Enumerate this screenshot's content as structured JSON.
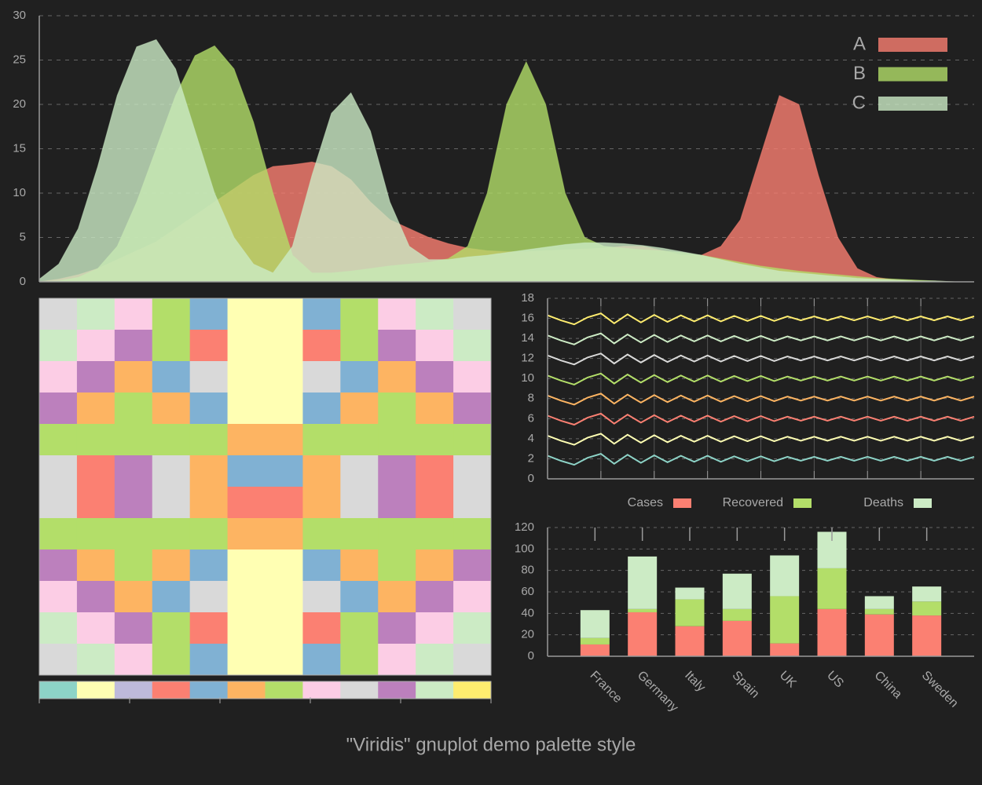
{
  "title": "\"Viridis\" gnuplot demo palette style",
  "chart_data": [
    {
      "type": "area",
      "x": [
        0,
        1,
        2,
        3,
        4,
        5,
        6,
        7,
        8,
        9,
        10,
        11,
        12,
        13,
        14,
        15,
        16,
        17,
        18,
        19,
        20,
        21,
        22,
        23,
        24,
        25,
        26,
        27,
        28,
        29,
        30,
        31,
        32,
        33,
        34,
        35,
        36,
        37,
        38,
        39,
        40,
        41,
        42,
        43,
        44,
        45,
        46,
        47,
        48
      ],
      "xlim": [
        0,
        48
      ],
      "ylim": [
        0,
        30
      ],
      "yticks": [
        0,
        5,
        10,
        15,
        20,
        25,
        30
      ],
      "grid": true,
      "legend": "top-right",
      "series": [
        {
          "name": "A",
          "color": "#fb8072",
          "values": [
            0,
            0.3,
            0.8,
            1.5,
            2.5,
            3.5,
            4.5,
            6,
            7.5,
            9,
            10.5,
            12,
            13,
            13.2,
            13.5,
            13,
            11.5,
            9,
            7,
            6,
            5,
            4.3,
            3.8,
            3.5,
            3.4,
            3.4,
            3.5,
            3.6,
            3.7,
            3.8,
            4,
            4,
            3.5,
            3,
            3,
            4,
            7,
            14,
            21,
            20,
            12,
            5,
            1.5,
            0.5,
            0.2,
            0.1,
            0,
            0,
            0
          ]
        },
        {
          "name": "B",
          "color": "#b3de69",
          "values": [
            0,
            0.1,
            0.5,
            1.5,
            4,
            9,
            15,
            21,
            25.5,
            26.6,
            24,
            18,
            10,
            3,
            1,
            1,
            1.2,
            1.5,
            1.8,
            2,
            2.2,
            2.6,
            4,
            10,
            20,
            24.8,
            20,
            10,
            5,
            4,
            3.8,
            3.6,
            3.5,
            3.3,
            3,
            2.6,
            2.2,
            1.8,
            1.5,
            1.2,
            1,
            0.8,
            0.6,
            0.4,
            0.3,
            0.2,
            0.1,
            0,
            0
          ]
        },
        {
          "name": "C",
          "color": "#ccebc5",
          "values": [
            0.3,
            2,
            6,
            13,
            21,
            26.5,
            27.3,
            24,
            17,
            10,
            5,
            2,
            1,
            4,
            12,
            19,
            21.3,
            17,
            9,
            4,
            2.5,
            2.5,
            2.8,
            3,
            3.3,
            3.6,
            3.9,
            4.2,
            4.4,
            4.4,
            4.3,
            4.1,
            3.8,
            3.4,
            3,
            2.5,
            2,
            1.6,
            1.2,
            1,
            0.8,
            0.6,
            0.4,
            0.3,
            0.2,
            0.1,
            0.1,
            0,
            0
          ]
        }
      ]
    },
    {
      "type": "heatmap",
      "palette": [
        "#8dd3c7",
        "#ffffb3",
        "#bebada",
        "#fb8072",
        "#80b1d3",
        "#fdb462",
        "#b3de69",
        "#fccde5",
        "#d9d9d9",
        "#bc80bd",
        "#ccebc5",
        "#ffed6f"
      ],
      "cblim": [
        0,
        12
      ],
      "cbticks": [
        0,
        2.4,
        4.8,
        7.2,
        9.6,
        12
      ],
      "z": [
        [
          8,
          10,
          7,
          6,
          4,
          1,
          1,
          4,
          6,
          7,
          10,
          8
        ],
        [
          10,
          7,
          9,
          6,
          3,
          1,
          1,
          3,
          6,
          9,
          7,
          10
        ],
        [
          7,
          9,
          5,
          4,
          8,
          1,
          1,
          8,
          4,
          5,
          9,
          7
        ],
        [
          9,
          5,
          6,
          5,
          4,
          1,
          1,
          4,
          5,
          6,
          5,
          9
        ],
        [
          6,
          6,
          6,
          6,
          6,
          5,
          5,
          6,
          6,
          6,
          6,
          6
        ],
        [
          8,
          3,
          9,
          8,
          5,
          4,
          4,
          5,
          8,
          9,
          3,
          8
        ],
        [
          8,
          3,
          9,
          8,
          5,
          3,
          3,
          5,
          8,
          9,
          3,
          8
        ],
        [
          6,
          6,
          6,
          6,
          6,
          5,
          5,
          6,
          6,
          6,
          6,
          6
        ],
        [
          9,
          5,
          6,
          5,
          4,
          1,
          1,
          4,
          5,
          6,
          5,
          9
        ],
        [
          7,
          9,
          5,
          4,
          8,
          1,
          1,
          8,
          4,
          5,
          9,
          7
        ],
        [
          10,
          7,
          9,
          6,
          3,
          1,
          1,
          3,
          6,
          9,
          7,
          10
        ],
        [
          8,
          10,
          7,
          6,
          4,
          1,
          1,
          4,
          6,
          7,
          10,
          8
        ]
      ]
    },
    {
      "type": "line",
      "x": [
        0,
        0.25,
        0.5,
        0.75,
        1,
        1.25,
        1.5,
        1.75,
        2,
        2.25,
        2.5,
        2.75,
        3,
        3.25,
        3.5,
        3.75,
        4,
        4.25,
        4.5,
        4.75,
        5,
        5.25,
        5.5,
        5.75,
        6,
        6.25,
        6.5,
        6.75,
        7,
        7.25,
        7.5,
        7.75,
        8
      ],
      "xlim": [
        0,
        8
      ],
      "xticks": [
        1,
        2,
        3,
        4,
        5,
        6,
        7
      ],
      "ylim": [
        0,
        18
      ],
      "yticks": [
        0,
        2,
        4,
        6,
        8,
        10,
        12,
        14,
        16,
        18
      ],
      "grid": true,
      "series": [
        {
          "color": "#ffed6f",
          "values": [
            16.3,
            15.8,
            15.4,
            16.1,
            16.5,
            15.5,
            16.4,
            15.6,
            16.35,
            15.65,
            16.3,
            15.7,
            16.3,
            15.7,
            16.25,
            15.75,
            16.25,
            15.75,
            16.2,
            15.8,
            16.2,
            15.8,
            16.2,
            15.8,
            16.2,
            15.8,
            16.2,
            15.8,
            16.2,
            15.8,
            16.2,
            15.8,
            16.2
          ]
        },
        {
          "color": "#ccebc5",
          "values": [
            14.3,
            13.8,
            13.4,
            14.1,
            14.5,
            13.5,
            14.4,
            13.6,
            14.35,
            13.65,
            14.3,
            13.7,
            14.3,
            13.7,
            14.25,
            13.75,
            14.25,
            13.75,
            14.2,
            13.8,
            14.2,
            13.8,
            14.2,
            13.8,
            14.2,
            13.8,
            14.2,
            13.8,
            14.2,
            13.8,
            14.2,
            13.8,
            14.2
          ]
        },
        {
          "color": "#d9d9d9",
          "values": [
            12.3,
            11.8,
            11.4,
            12.1,
            12.5,
            11.5,
            12.4,
            11.6,
            12.35,
            11.65,
            12.3,
            11.7,
            12.3,
            11.7,
            12.25,
            11.75,
            12.25,
            11.75,
            12.2,
            11.8,
            12.2,
            11.8,
            12.2,
            11.8,
            12.2,
            11.8,
            12.2,
            11.8,
            12.2,
            11.8,
            12.2,
            11.8,
            12.2
          ]
        },
        {
          "color": "#b3de69",
          "values": [
            10.3,
            9.8,
            9.4,
            10.1,
            10.5,
            9.5,
            10.4,
            9.6,
            10.35,
            9.65,
            10.3,
            9.7,
            10.3,
            9.7,
            10.25,
            9.75,
            10.25,
            9.75,
            10.2,
            9.8,
            10.2,
            9.8,
            10.2,
            9.8,
            10.2,
            9.8,
            10.2,
            9.8,
            10.2,
            9.8,
            10.2,
            9.8,
            10.2
          ]
        },
        {
          "color": "#fdb462",
          "values": [
            8.3,
            7.8,
            7.4,
            8.1,
            8.5,
            7.5,
            8.4,
            7.6,
            8.35,
            7.65,
            8.3,
            7.7,
            8.3,
            7.7,
            8.25,
            7.75,
            8.25,
            7.75,
            8.2,
            7.8,
            8.2,
            7.8,
            8.2,
            7.8,
            8.2,
            7.8,
            8.2,
            7.8,
            8.2,
            7.8,
            8.2,
            7.8,
            8.2
          ]
        },
        {
          "color": "#fb8072",
          "values": [
            6.3,
            5.8,
            5.4,
            6.1,
            6.5,
            5.5,
            6.4,
            5.6,
            6.35,
            5.65,
            6.3,
            5.7,
            6.3,
            5.7,
            6.25,
            5.75,
            6.25,
            5.75,
            6.2,
            5.8,
            6.2,
            5.8,
            6.2,
            5.8,
            6.2,
            5.8,
            6.2,
            5.8,
            6.2,
            5.8,
            6.2,
            5.8,
            6.2
          ]
        },
        {
          "color": "#ffffb3",
          "values": [
            4.3,
            3.8,
            3.4,
            4.1,
            4.5,
            3.5,
            4.4,
            3.6,
            4.35,
            3.65,
            4.3,
            3.7,
            4.3,
            3.7,
            4.25,
            3.75,
            4.25,
            3.75,
            4.2,
            3.8,
            4.2,
            3.8,
            4.2,
            3.8,
            4.2,
            3.8,
            4.2,
            3.8,
            4.2,
            3.8,
            4.2,
            3.8,
            4.2
          ]
        },
        {
          "color": "#8dd3c7",
          "values": [
            2.3,
            1.8,
            1.4,
            2.1,
            2.5,
            1.5,
            2.4,
            1.6,
            2.35,
            1.65,
            2.3,
            1.7,
            2.3,
            1.7,
            2.25,
            1.75,
            2.25,
            1.75,
            2.2,
            1.8,
            2.2,
            1.8,
            2.2,
            1.8,
            2.2,
            1.8,
            2.2,
            1.8,
            2.2,
            1.8,
            2.2,
            1.8,
            2.2
          ]
        }
      ]
    },
    {
      "type": "stacked-bar",
      "categories": [
        "France",
        "Germany",
        "Italy",
        "Spain",
        "UK",
        "US",
        "China",
        "Sweden"
      ],
      "ylim": [
        0,
        120
      ],
      "yticks": [
        0,
        20,
        40,
        60,
        80,
        100,
        120
      ],
      "grid": true,
      "legend": "top",
      "series": [
        {
          "name": "Cases",
          "color": "#fb8072",
          "values": [
            11,
            41,
            28,
            33,
            12,
            44,
            39,
            38
          ]
        },
        {
          "name": "Recovered",
          "color": "#b3de69",
          "values": [
            6,
            3,
            25,
            11,
            44,
            38,
            5,
            13
          ]
        },
        {
          "name": "Deaths",
          "color": "#ccebc5",
          "values": [
            26,
            49,
            11,
            33,
            38,
            34,
            12,
            14
          ]
        }
      ]
    }
  ]
}
